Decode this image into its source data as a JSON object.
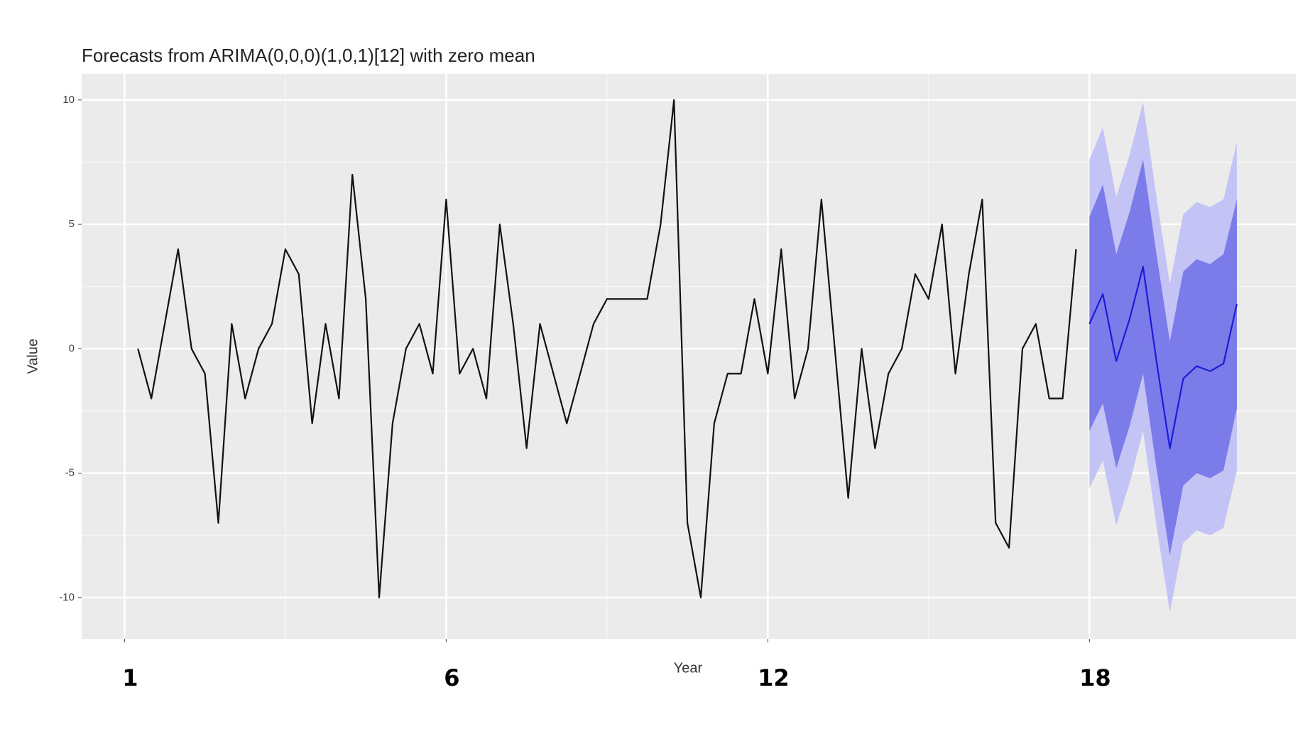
{
  "chart_data": {
    "type": "forecast",
    "title": "Forecasts from ARIMA(0,0,0)(1,0,1)[12] with zero mean",
    "x_label": "Year",
    "y_label": "Value",
    "xlim": [
      -3.2,
      87.4
    ],
    "ylim": [
      -11.66,
      11.05
    ],
    "xticks": [
      {
        "value": 0,
        "label": "1"
      },
      {
        "value": 24,
        "label": "6"
      },
      {
        "value": 48,
        "label": "12"
      },
      {
        "value": 72,
        "label": "18"
      }
    ],
    "yticks": [
      -10,
      -5,
      0,
      5,
      10
    ],
    "grid": true,
    "observed": {
      "color": "#111111",
      "x": [
        1,
        2,
        3,
        4,
        5,
        6,
        7,
        8,
        9,
        10,
        11,
        12,
        13,
        14,
        15,
        16,
        17,
        18,
        19,
        20,
        21,
        22,
        23,
        24,
        25,
        26,
        27,
        28,
        29,
        30,
        31,
        32,
        33,
        34,
        35,
        36,
        37,
        38,
        39,
        40,
        41,
        42,
        43,
        44,
        45,
        46,
        47,
        48,
        49,
        50,
        51,
        52,
        53,
        54,
        55,
        56,
        57,
        58,
        59,
        60,
        61,
        62,
        63,
        64,
        65,
        66,
        67,
        68,
        69,
        70,
        71
      ],
      "values": [
        0,
        -2,
        1,
        4,
        0,
        -1,
        -7,
        1,
        -2,
        0,
        1,
        4,
        3,
        -3,
        1,
        -2,
        7,
        2,
        -10,
        -3,
        0,
        1,
        -1,
        6,
        -1,
        0,
        -2,
        5,
        1,
        -4,
        1,
        -1,
        -3,
        -1,
        1,
        2,
        2,
        2,
        2,
        5,
        10,
        -7,
        -10,
        -3,
        -1,
        -1,
        2,
        -1,
        4,
        -2,
        0,
        6,
        0,
        -6,
        0,
        -4,
        -1,
        0,
        3,
        2,
        5,
        -1,
        3,
        6,
        -7,
        -8,
        0,
        1,
        -2,
        -2,
        4
      ]
    },
    "forecast": {
      "line_color": "#1c1cd6",
      "band80_color": "#7b7bea",
      "band95_color": "#c3c3f6",
      "x": [
        72,
        73,
        74,
        75,
        76,
        77,
        78,
        79,
        80,
        81,
        82,
        83
      ],
      "mean": [
        1.0,
        2.2,
        -0.5,
        1.2,
        3.3,
        -0.5,
        -4.0,
        -1.2,
        -0.7,
        -0.9,
        -0.6,
        1.8
      ],
      "lo80": [
        -3.3,
        -2.2,
        -4.8,
        -3.1,
        -1.0,
        -4.8,
        -8.3,
        -5.5,
        -5.0,
        -5.2,
        -4.9,
        -2.4
      ],
      "hi80": [
        5.3,
        6.6,
        3.8,
        5.5,
        7.6,
        3.8,
        0.3,
        3.1,
        3.6,
        3.4,
        3.8,
        6.0
      ],
      "lo95": [
        -5.6,
        -4.5,
        -7.1,
        -5.4,
        -3.3,
        -7.1,
        -10.6,
        -7.8,
        -7.3,
        -7.5,
        -7.2,
        -4.9
      ],
      "hi95": [
        7.6,
        8.9,
        6.1,
        7.8,
        9.9,
        6.1,
        2.6,
        5.4,
        5.9,
        5.7,
        6.0,
        8.3
      ]
    }
  }
}
